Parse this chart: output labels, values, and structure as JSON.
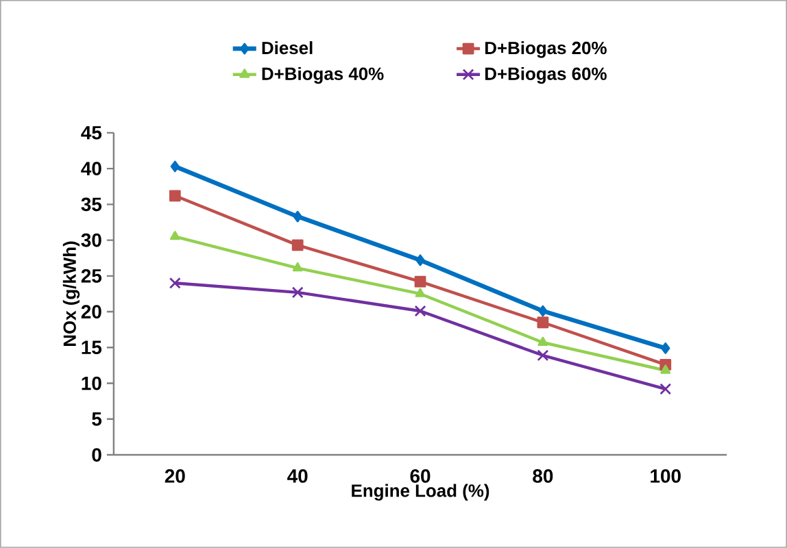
{
  "chart_data": {
    "type": "line",
    "xlabel": "Engine Load (%)",
    "ylabel": "NOx (g/kWh)",
    "categories": [
      "20",
      "40",
      "60",
      "80",
      "100"
    ],
    "ylim": [
      0,
      45
    ],
    "yticks": [
      0,
      5,
      10,
      15,
      20,
      25,
      30,
      35,
      40,
      45
    ],
    "grid": false,
    "legend": "top",
    "line_style": "solid",
    "series": [
      {
        "name": "Diesel",
        "color": "#0070c0",
        "marker": "diamond",
        "values": [
          40.3,
          33.3,
          27.2,
          20.1,
          14.9
        ]
      },
      {
        "name": "D+Biogas 20%",
        "color": "#c0504d",
        "marker": "square",
        "values": [
          36.2,
          29.3,
          24.2,
          18.5,
          12.6
        ]
      },
      {
        "name": "D+Biogas 40%",
        "color": "#92d050",
        "marker": "triangle",
        "values": [
          30.5,
          26.1,
          22.5,
          15.7,
          11.8
        ]
      },
      {
        "name": "D+Biogas 60%",
        "color": "#7030a0",
        "marker": "cross",
        "values": [
          24.0,
          22.7,
          20.1,
          13.9,
          9.2
        ]
      }
    ]
  }
}
